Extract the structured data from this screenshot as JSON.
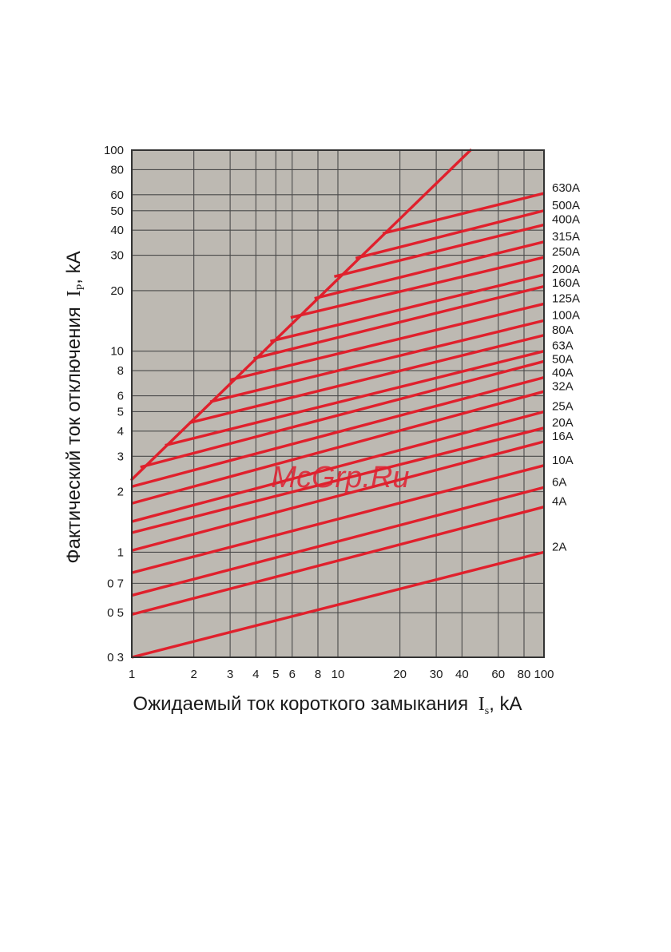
{
  "chart_data": {
    "type": "line",
    "x_scale": "log",
    "y_scale": "log",
    "xlim": [
      1,
      100
    ],
    "ylim": [
      0.3,
      100
    ],
    "grid": true,
    "xlabel": {
      "text": "Ожидаемый ток короткого замыкания",
      "symbol": "I",
      "sub": "s",
      "unit": ", kA"
    },
    "ylabel": {
      "text": "Фактический ток отключения",
      "symbol": "I",
      "sub": "P",
      "unit": ", kA"
    },
    "x_ticks": [
      {
        "v": 1,
        "label": "1"
      },
      {
        "v": 2,
        "label": "2"
      },
      {
        "v": 3,
        "label": "3"
      },
      {
        "v": 4,
        "label": "4"
      },
      {
        "v": 5,
        "label": "5"
      },
      {
        "v": 6,
        "label": "6"
      },
      {
        "v": 8,
        "label": "8"
      },
      {
        "v": 10,
        "label": "10"
      },
      {
        "v": 20,
        "label": "20"
      },
      {
        "v": 30,
        "label": "30"
      },
      {
        "v": 40,
        "label": "40"
      },
      {
        "v": 60,
        "label": "60"
      },
      {
        "v": 80,
        "label": "80"
      },
      {
        "v": 100,
        "label": "100"
      }
    ],
    "y_ticks": [
      {
        "v": 0.3,
        "label": "0 3"
      },
      {
        "v": 0.5,
        "label": "0 5"
      },
      {
        "v": 0.7,
        "label": "0 7"
      },
      {
        "v": 1,
        "label": "1"
      },
      {
        "v": 2,
        "label": "2"
      },
      {
        "v": 3,
        "label": "3"
      },
      {
        "v": 4,
        "label": "4"
      },
      {
        "v": 5,
        "label": "5"
      },
      {
        "v": 6,
        "label": "6"
      },
      {
        "v": 8,
        "label": "8"
      },
      {
        "v": 10,
        "label": "10"
      },
      {
        "v": 20,
        "label": "20"
      },
      {
        "v": 30,
        "label": "30"
      },
      {
        "v": 40,
        "label": "40"
      },
      {
        "v": 50,
        "label": "50"
      },
      {
        "v": 60,
        "label": "60"
      },
      {
        "v": 80,
        "label": "80"
      },
      {
        "v": 100,
        "label": "100"
      }
    ],
    "envelope": {
      "x": [
        1,
        44
      ],
      "y": [
        2.3,
        100
      ]
    },
    "series": [
      {
        "name": "630A",
        "x": [
          16.5,
          100
        ],
        "y": [
          38.5,
          61
        ]
      },
      {
        "name": "500A",
        "x": [
          12.2,
          100
        ],
        "y": [
          29,
          50
        ]
      },
      {
        "name": "400A",
        "x": [
          9.6,
          100
        ],
        "y": [
          23.5,
          42.5
        ]
      },
      {
        "name": "315A",
        "x": [
          7.7,
          100
        ],
        "y": [
          18.3,
          35
        ]
      },
      {
        "name": "250A",
        "x": [
          5.9,
          100
        ],
        "y": [
          14.7,
          29.3
        ]
      },
      {
        "name": "200A",
        "x": [
          4.7,
          100
        ],
        "y": [
          11.2,
          24
        ]
      },
      {
        "name": "160A",
        "x": [
          3.9,
          100
        ],
        "y": [
          9.2,
          21
        ]
      },
      {
        "name": "125A",
        "x": [
          3.0,
          100
        ],
        "y": [
          7.2,
          17.2
        ]
      },
      {
        "name": "100A",
        "x": [
          2.4,
          100
        ],
        "y": [
          5.6,
          14.2
        ]
      },
      {
        "name": "80A",
        "x": [
          1.9,
          100
        ],
        "y": [
          4.4,
          12
        ]
      },
      {
        "name": "63A",
        "x": [
          1.45,
          100
        ],
        "y": [
          3.4,
          10
        ]
      },
      {
        "name": "50A",
        "x": [
          1.1,
          100
        ],
        "y": [
          2.65,
          8.9
        ]
      },
      {
        "name": "40A",
        "x": [
          1,
          100
        ],
        "y": [
          2.12,
          7.4
        ]
      },
      {
        "name": "32A",
        "x": [
          1,
          100
        ],
        "y": [
          1.75,
          6.3
        ]
      },
      {
        "name": "25A",
        "x": [
          1,
          100
        ],
        "y": [
          1.42,
          5.0
        ]
      },
      {
        "name": "20A",
        "x": [
          1,
          100
        ],
        "y": [
          1.25,
          4.15
        ]
      },
      {
        "name": "16A",
        "x": [
          1,
          100
        ],
        "y": [
          1.02,
          3.55
        ]
      },
      {
        "name": "10A",
        "x": [
          1,
          100
        ],
        "y": [
          0.79,
          2.7
        ]
      },
      {
        "name": "6A",
        "x": [
          1,
          100
        ],
        "y": [
          0.61,
          2.1
        ]
      },
      {
        "name": "4A",
        "x": [
          1,
          100
        ],
        "y": [
          0.49,
          1.68
        ]
      },
      {
        "name": "2A",
        "x": [
          1,
          100
        ],
        "y": [
          0.3,
          1.0
        ]
      }
    ],
    "series_labels": [
      {
        "name": "630A"
      },
      {
        "name": "500A"
      },
      {
        "name": "400A"
      },
      {
        "name": "315A"
      },
      {
        "name": "250A"
      },
      {
        "name": "200A"
      },
      {
        "name": "160A"
      },
      {
        "name": "125A"
      },
      {
        "name": "100A"
      },
      {
        "name": "80A"
      },
      {
        "name": "63A"
      },
      {
        "name": "50A"
      },
      {
        "name": "40A"
      },
      {
        "name": "32A"
      },
      {
        "name": "25A"
      },
      {
        "name": "20A"
      },
      {
        "name": "16A"
      },
      {
        "name": "10A"
      },
      {
        "name": "6A"
      },
      {
        "name": "4A"
      },
      {
        "name": "2A"
      }
    ],
    "colors": {
      "plot_bg": "#bdb9b2",
      "grid": "#4a4a4a",
      "curve": "#e0202c",
      "frame": "#333333"
    }
  },
  "watermark": "McGrp.Ru"
}
